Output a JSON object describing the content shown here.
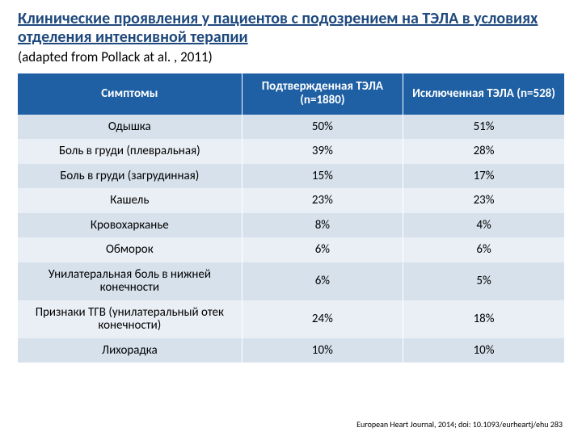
{
  "title": "Клинические проявления у пациентов с подозрением на ТЭЛА в условиях отделения интенсивной терапии",
  "subtitle": "(adapted from Pollack at al. , 2011)",
  "citation": "European Heart Journal, 2014; doi: 10.1093/eurheartj/ehu 283",
  "table": {
    "columns": [
      "Симптомы",
      "Подтвержденная ТЭЛА (n=1880)",
      "Исключенная ТЭЛА (n=528)"
    ],
    "rows": [
      [
        "Одышка",
        "50%",
        "51%"
      ],
      [
        "Боль в груди (плевральная)",
        "39%",
        "28%"
      ],
      [
        "Боль в груди (загрудинная)",
        "15%",
        "17%"
      ],
      [
        "Кашель",
        "23%",
        "23%"
      ],
      [
        "Кровохарканье",
        "8%",
        "4%"
      ],
      [
        "Обморок",
        "6%",
        "6%"
      ],
      [
        "Унилатеральная боль в нижней конечности",
        "6%",
        "5%"
      ],
      [
        "Признаки ТГВ (унилатеральный отек конечности)",
        "24%",
        "18%"
      ],
      [
        "Лихорадка",
        "10%",
        "10%"
      ]
    ],
    "header_bg": "#1f60a4",
    "band_colors": [
      "#d6e1ec",
      "#eaeff6"
    ],
    "title_color": "#1f497d"
  }
}
